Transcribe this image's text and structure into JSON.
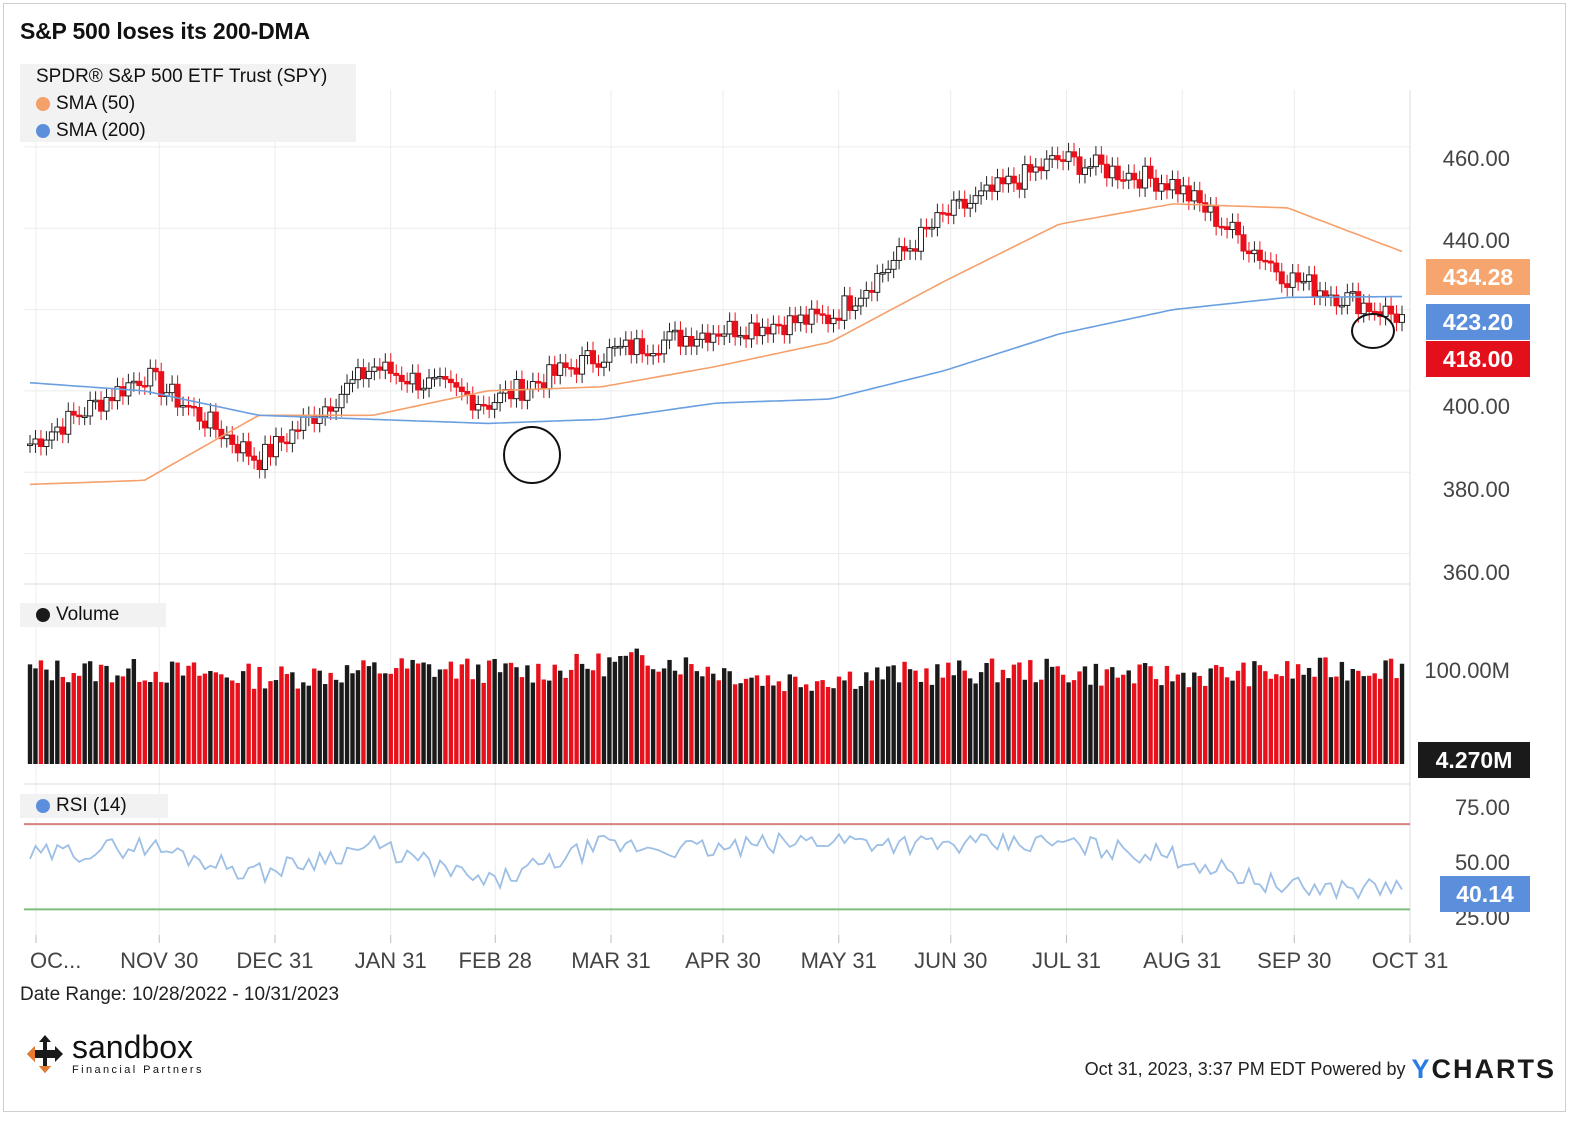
{
  "title": "S&P 500 loses its 200-DMA",
  "legend": {
    "main": "SPDR® S&P 500 ETF Trust (SPY)",
    "sma50": "SMA (50)",
    "sma200": "SMA (200)",
    "volume": "Volume",
    "rsi": "RSI (14)"
  },
  "colors": {
    "up": "#ffffff",
    "down": "#e8111b",
    "sma50": "#f5a06a",
    "sma200": "#6a9fe0",
    "rsi": "#9dbfe6",
    "rsi_upper": "#d98080",
    "rsi_lower": "#7bbf7b",
    "tag_sma50": "#f5a56d",
    "tag_sma200": "#5b8fdc",
    "tag_price": "#e3101b",
    "tag_volume": "#1a1a1a",
    "tag_rsi": "#5b8fdc"
  },
  "tags": {
    "sma50": "434.28",
    "sma200": "423.20",
    "price": "418.00",
    "volume": "4.270M",
    "rsi": "40.14"
  },
  "axes": {
    "price_ticks": [
      "460.00",
      "440.00",
      "400.00",
      "380.00",
      "360.00"
    ],
    "volume_ticks": [
      "100.00M"
    ],
    "rsi_ticks": [
      "75.00",
      "50.00",
      "25.00"
    ],
    "x_ticks": [
      "OC...",
      "NOV 30",
      "DEC 31",
      "JAN 31",
      "FEB 28",
      "MAR 31",
      "APR 30",
      "MAY 31",
      "JUN 30",
      "JUL 31",
      "AUG 31",
      "SEP 30",
      "OCT 31"
    ]
  },
  "date_range": "Date Range: 10/28/2022 - 10/31/2023",
  "footer": {
    "timestamp": "Oct 31, 2023, 3:37 PM EDT Powered by",
    "brand_y": "Y",
    "brand_rest": "CHARTS",
    "logo_name": "sandbox",
    "logo_sub": "Financial Partners"
  },
  "chart_data": {
    "type": "line",
    "title": "S&P 500 loses its 200-DMA",
    "ylim_price": [
      355,
      470
    ],
    "ylim_rsi": [
      20,
      80
    ],
    "x": [
      "2022-10-28",
      "2022-11-30",
      "2022-12-31",
      "2023-01-31",
      "2023-02-28",
      "2023-03-31",
      "2023-04-30",
      "2023-05-31",
      "2023-06-30",
      "2023-07-31",
      "2023-08-31",
      "2023-09-30",
      "2023-10-31"
    ],
    "series": [
      {
        "name": "SPDR® S&P 500 ETF Trust (SPY)",
        "values": [
          387,
          404,
          383,
          406,
          397,
          409,
          415,
          418,
          443,
          457,
          451,
          428,
          418
        ]
      },
      {
        "name": "SMA (50)",
        "values": [
          377,
          378,
          394,
          394,
          400,
          401,
          406,
          412,
          427,
          441,
          446,
          445,
          434.28
        ]
      },
      {
        "name": "SMA (200)",
        "values": [
          402,
          400,
          394,
          393,
          392,
          393,
          397,
          398,
          405,
          414,
          420,
          423,
          423.2
        ]
      },
      {
        "name": "Volume",
        "values": [
          80,
          79,
          74,
          82,
          79,
          90,
          71,
          77,
          80,
          75,
          78,
          84,
          4.27
        ]
      },
      {
        "name": "RSI (14)",
        "values": [
          55,
          60,
          47,
          60,
          42,
          60,
          58,
          63,
          60,
          61,
          55,
          40,
          40.14
        ]
      }
    ],
    "rsi_bands": [
      70,
      30
    ],
    "grid": true,
    "legend_position": "top-left"
  }
}
